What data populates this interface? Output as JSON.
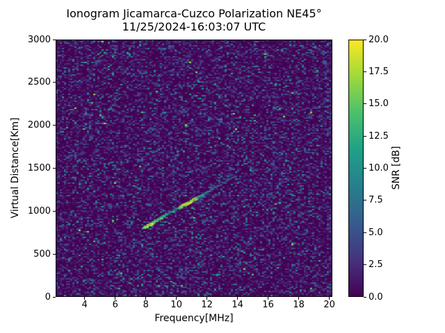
{
  "title": {
    "line1": "Ionogram Jicamarca-Cuzco Polarization NE45°",
    "line2": "11/25/2024-16:03:07 UTC"
  },
  "colors": {
    "figure_bg": "#ffffff",
    "axes_frame": "#000000",
    "text": "#000000",
    "heatmap_base": "#440154",
    "trace_peak": "#fde725"
  },
  "chart_data": {
    "type": "heatmap",
    "title": "Ionogram Jicamarca-Cuzco Polarization NE45°",
    "subtitle": "11/25/2024-16:03:07 UTC",
    "xlabel": "Frequency[MHz]",
    "ylabel": "Virtual Distance[Km]",
    "xlim": [
      2.1,
      20.2
    ],
    "ylim": [
      0,
      3000
    ],
    "grid": false,
    "xticks": [
      4,
      6,
      8,
      10,
      12,
      14,
      16,
      18,
      20
    ],
    "yticks": [
      0,
      500,
      1000,
      1500,
      2000,
      2500,
      3000
    ],
    "colorbar": {
      "label": "SNR [dB]",
      "min": 0,
      "max": 20,
      "tick_labels": [
        "0.0",
        "2.5",
        "5.0",
        "7.5",
        "10.0",
        "12.5",
        "15.0",
        "17.5",
        "20.0"
      ],
      "colormap": "viridis",
      "position": "right"
    },
    "colormap_stops": [
      "#440154",
      "#46327e",
      "#365c8d",
      "#277f8e",
      "#1fa187",
      "#4ac16d",
      "#9fda3a",
      "#fde725"
    ],
    "background_noise": {
      "description": "uniform random speckle noise over whole field, mostly 0-8 dB, rare bright outliers",
      "snr_range_dB": [
        0,
        18
      ]
    },
    "trace": {
      "name": "ionospheric-echo-trace",
      "points_format": [
        "frequency_MHz",
        "virtual_distance_km",
        "snr_dB"
      ],
      "points": [
        [
          7.9,
          810,
          13
        ],
        [
          7.98,
          820,
          17
        ],
        [
          8.06,
          829,
          20
        ],
        [
          8.14,
          837,
          19
        ],
        [
          8.22,
          845,
          16
        ],
        [
          8.3,
          853,
          20
        ],
        [
          8.38,
          861,
          18
        ],
        [
          8.46,
          869,
          19
        ],
        [
          8.54,
          877,
          12
        ],
        [
          8.62,
          885,
          17
        ],
        [
          8.7,
          894,
          14
        ],
        [
          8.78,
          902,
          10
        ],
        [
          8.86,
          910,
          16
        ],
        [
          8.94,
          918,
          12
        ],
        [
          9.02,
          926,
          15
        ],
        [
          9.1,
          934,
          11
        ],
        [
          9.18,
          942,
          13
        ],
        [
          9.26,
          950,
          9
        ],
        [
          9.34,
          958,
          12
        ],
        [
          9.42,
          966,
          10
        ],
        [
          9.5,
          975,
          8
        ],
        [
          9.6,
          985,
          11
        ],
        [
          9.7,
          994,
          9
        ],
        [
          9.8,
          1004,
          12
        ],
        [
          9.9,
          1014,
          8
        ],
        [
          10.0,
          1024,
          10
        ],
        [
          10.1,
          1034,
          9
        ],
        [
          10.2,
          1044,
          13
        ],
        [
          10.3,
          1053,
          16
        ],
        [
          10.4,
          1063,
          19
        ],
        [
          10.5,
          1073,
          20
        ],
        [
          10.6,
          1083,
          18
        ],
        [
          10.7,
          1093,
          20
        ],
        [
          10.8,
          1103,
          19
        ],
        [
          10.9,
          1112,
          20
        ],
        [
          11.0,
          1122,
          17
        ],
        [
          11.1,
          1132,
          19
        ],
        [
          11.2,
          1142,
          20
        ],
        [
          11.3,
          1152,
          15
        ],
        [
          11.4,
          1162,
          12
        ],
        [
          11.5,
          1171,
          14
        ],
        [
          11.6,
          1181,
          10
        ],
        [
          11.7,
          1191,
          12
        ],
        [
          11.8,
          1201,
          9
        ],
        [
          11.9,
          1211,
          11
        ],
        [
          12.0,
          1220,
          8
        ],
        [
          12.12,
          1232,
          10
        ],
        [
          12.24,
          1244,
          7
        ],
        [
          12.36,
          1256,
          9
        ],
        [
          12.48,
          1268,
          6
        ],
        [
          12.6,
          1280,
          8
        ],
        [
          12.75,
          1295,
          7
        ],
        [
          12.9,
          1310,
          6
        ],
        [
          13.05,
          1324,
          8
        ],
        [
          13.2,
          1339,
          6
        ],
        [
          13.35,
          1354,
          7
        ],
        [
          13.5,
          1369,
          6
        ],
        [
          13.65,
          1384,
          5
        ],
        [
          13.8,
          1399,
          6
        ]
      ],
      "scatter_points": [
        [
          12.45,
          1300,
          5
        ],
        [
          12.8,
          1340,
          6
        ],
        [
          13.1,
          1372,
          5
        ],
        [
          13.4,
          1405,
          6
        ],
        [
          13.6,
          1425,
          5
        ]
      ]
    }
  }
}
